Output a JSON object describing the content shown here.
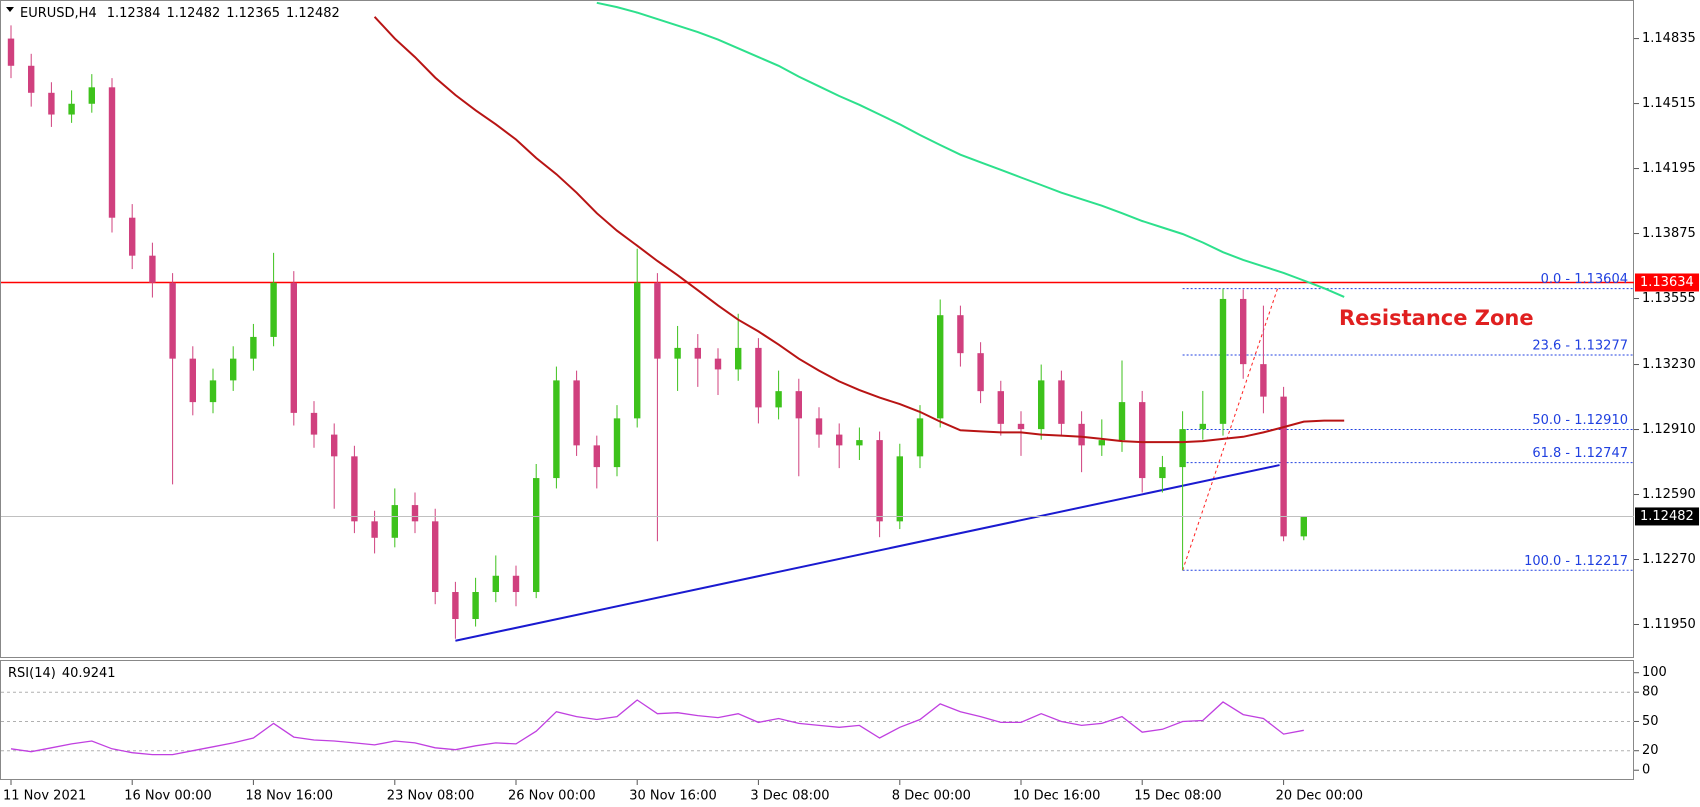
{
  "chart_data": [
    {
      "type": "candlestick",
      "title": "EURUSD,H4",
      "categories": [
        "11 Nov 2021",
        null,
        null,
        null,
        null,
        null,
        "16 Nov 00:00",
        null,
        null,
        null,
        null,
        null,
        "18 Nov 16:00",
        null,
        null,
        null,
        null,
        null,
        null,
        "23 Nov 08:00",
        null,
        null,
        null,
        null,
        null,
        "26 Nov 00:00",
        null,
        null,
        null,
        null,
        null,
        "30 Nov 16:00",
        null,
        null,
        null,
        null,
        null,
        "3 Dec 08:00",
        null,
        null,
        null,
        null,
        null,
        null,
        "8 Dec 00:00",
        null,
        null,
        null,
        null,
        null,
        "10 Dec 16:00",
        null,
        null,
        null,
        null,
        null,
        "15 Dec 08:00",
        null,
        null,
        null,
        null,
        null,
        null,
        "20 Dec 00:00",
        null,
        null,
        null
      ],
      "candles": [
        [
          1.14835,
          1.149,
          1.1464,
          1.14701
        ],
        [
          1.14701,
          1.1476,
          1.145,
          1.14568
        ],
        [
          1.14568,
          1.1462,
          1.144,
          1.14461
        ],
        [
          1.14461,
          1.1458,
          1.1442,
          1.14514
        ],
        [
          1.14514,
          1.1466,
          1.1447,
          1.14595
        ],
        [
          1.14595,
          1.1464,
          1.1388,
          1.13953
        ],
        [
          1.13953,
          1.1402,
          1.137,
          1.13766
        ],
        [
          1.13766,
          1.1383,
          1.1356,
          1.13633
        ],
        [
          1.13633,
          1.1368,
          1.1264,
          1.13259
        ],
        [
          1.13259,
          1.1332,
          1.1298,
          1.13045
        ],
        [
          1.13045,
          1.1321,
          1.1299,
          1.13152
        ],
        [
          1.13152,
          1.1332,
          1.131,
          1.13259
        ],
        [
          1.13259,
          1.1343,
          1.132,
          1.13366
        ],
        [
          1.13366,
          1.1378,
          1.1332,
          1.13633
        ],
        [
          1.13633,
          1.1369,
          1.1293,
          1.12992
        ],
        [
          1.12992,
          1.1305,
          1.1282,
          1.12885
        ],
        [
          1.12885,
          1.1294,
          1.1252,
          1.12778
        ],
        [
          1.12778,
          1.1283,
          1.124,
          1.12458
        ],
        [
          1.12458,
          1.1251,
          1.123,
          1.12377
        ],
        [
          1.12377,
          1.1262,
          1.1233,
          1.12538
        ],
        [
          1.12538,
          1.126,
          1.124,
          1.12458
        ],
        [
          1.12458,
          1.1252,
          1.1205,
          1.1211
        ],
        [
          1.1211,
          1.1216,
          1.1188,
          1.11977
        ],
        [
          1.11977,
          1.1218,
          1.1194,
          1.1211
        ],
        [
          1.1211,
          1.1229,
          1.1206,
          1.1219
        ],
        [
          1.1219,
          1.1224,
          1.1204,
          1.1211
        ],
        [
          1.1211,
          1.1274,
          1.1208,
          1.12671
        ],
        [
          1.12671,
          1.1322,
          1.1262,
          1.13152
        ],
        [
          1.13152,
          1.132,
          1.1278,
          1.12832
        ],
        [
          1.12832,
          1.1288,
          1.1262,
          1.12725
        ],
        [
          1.12725,
          1.1303,
          1.1268,
          1.12965
        ],
        [
          1.12965,
          1.138,
          1.1292,
          1.13633
        ],
        [
          1.13633,
          1.1368,
          1.1236,
          1.13259
        ],
        [
          1.13259,
          1.1342,
          1.131,
          1.13312
        ],
        [
          1.13312,
          1.1338,
          1.1312,
          1.13259
        ],
        [
          1.13259,
          1.1331,
          1.1308,
          1.13206
        ],
        [
          1.13206,
          1.1348,
          1.1315,
          1.13312
        ],
        [
          1.13312,
          1.1336,
          1.1294,
          1.13019
        ],
        [
          1.13019,
          1.132,
          1.1296,
          1.13099
        ],
        [
          1.13099,
          1.1316,
          1.1268,
          1.12965
        ],
        [
          1.12965,
          1.1302,
          1.1282,
          1.12885
        ],
        [
          1.12885,
          1.1294,
          1.1272,
          1.12832
        ],
        [
          1.12832,
          1.1292,
          1.1276,
          1.12858
        ],
        [
          1.12858,
          1.129,
          1.1238,
          1.12458
        ],
        [
          1.12458,
          1.1284,
          1.1242,
          1.12778
        ],
        [
          1.12778,
          1.1303,
          1.1272,
          1.12965
        ],
        [
          1.12965,
          1.1355,
          1.1292,
          1.13473
        ],
        [
          1.13473,
          1.1352,
          1.1322,
          1.13286
        ],
        [
          1.13286,
          1.1334,
          1.1304,
          1.13099
        ],
        [
          1.13099,
          1.1315,
          1.1288,
          1.12938
        ],
        [
          1.12938,
          1.13,
          1.1278,
          1.12912
        ],
        [
          1.12912,
          1.1323,
          1.1286,
          1.13152
        ],
        [
          1.13152,
          1.132,
          1.1288,
          1.12938
        ],
        [
          1.12938,
          1.13,
          1.127,
          1.12832
        ],
        [
          1.12832,
          1.1296,
          1.1278,
          1.12858
        ],
        [
          1.12858,
          1.1325,
          1.128,
          1.13045
        ],
        [
          1.13045,
          1.131,
          1.126,
          1.12671
        ],
        [
          1.12671,
          1.1278,
          1.126,
          1.12725
        ],
        [
          1.12725,
          1.13,
          1.12217,
          1.12912
        ],
        [
          1.12912,
          1.131,
          1.1286,
          1.12938
        ],
        [
          1.12938,
          1.13604,
          1.1288,
          1.13553
        ],
        [
          1.13553,
          1.136,
          1.1316,
          1.13232
        ],
        [
          1.13232,
          1.1352,
          1.1299,
          1.13072
        ],
        [
          1.13072,
          1.1312,
          1.1236,
          1.12384
        ],
        [
          1.12384,
          1.12482,
          1.12365,
          1.12482
        ]
      ],
      "up_color": "#3dc21b",
      "down_color": "#d0407e",
      "lines": [
        {
          "color": "#b81414",
          "values": [
            null,
            null,
            null,
            null,
            null,
            null,
            null,
            null,
            null,
            null,
            null,
            null,
            null,
            null,
            null,
            null,
            null,
            null,
            1.14942,
            1.14835,
            1.14744,
            1.14643,
            1.14557,
            1.14482,
            1.14413,
            1.14338,
            1.14247,
            1.14167,
            1.14076,
            1.13975,
            1.13889,
            1.13815,
            1.1374,
            1.1367,
            1.13596,
            1.13521,
            1.13451,
            1.13393,
            1.13328,
            1.13259,
            1.132,
            1.13147,
            1.13104,
            1.13067,
            1.13035,
            1.12997,
            1.12949,
            1.12906,
            1.12901,
            1.12896,
            1.12896,
            1.12885,
            1.1288,
            1.12874,
            1.12864,
            1.12853,
            1.12848,
            1.12848,
            1.12848,
            1.12853,
            1.12864,
            1.12874,
            1.12896,
            1.12922,
            1.12949,
            1.12954,
            1.12954
          ]
        },
        {
          "color": "#2de08c",
          "values": [
            null,
            null,
            null,
            null,
            null,
            null,
            null,
            null,
            null,
            null,
            null,
            null,
            null,
            null,
            null,
            null,
            null,
            null,
            null,
            null,
            null,
            null,
            null,
            null,
            null,
            null,
            null,
            null,
            null,
            1.15011,
            1.1499,
            1.14963,
            1.14931,
            1.14899,
            1.14867,
            1.1483,
            1.14787,
            1.14744,
            1.14701,
            1.14648,
            1.146,
            1.14552,
            1.14509,
            1.14461,
            1.14413,
            1.1436,
            1.14311,
            1.14263,
            1.14226,
            1.14189,
            1.14151,
            1.14114,
            1.14076,
            1.14044,
            1.14012,
            1.13975,
            1.13937,
            1.13905,
            1.13873,
            1.13831,
            1.13783,
            1.13745,
            1.13713,
            1.13681,
            1.13644,
            1.13606,
            1.13563
          ]
        }
      ],
      "hline": {
        "value": 1.13634,
        "color": "#ff0000"
      },
      "trendline": {
        "values": [
          1.1187,
          1.12735
        ],
        "color": "#1a1ad0"
      },
      "fibonacci": {
        "color": "#2040e0",
        "levels": [
          {
            "value": 1.13604,
            "label": "0.0 - 1.13604"
          },
          {
            "value": 1.13277,
            "label": "23.6 - 1.13277"
          },
          {
            "value": 1.1291,
            "label": "50.0 - 1.12910"
          },
          {
            "value": 1.12747,
            "label": "61.8 - 1.12747"
          },
          {
            "value": 1.12217,
            "label": "100.0 - 1.12217"
          }
        ]
      },
      "annotation": "Resistance Zone",
      "ylim": [
        1.1179,
        1.1502
      ],
      "yticks": [
        1.14835,
        1.14515,
        1.14195,
        1.13875,
        1.13555,
        {
          "value": 1.1323,
          "label": "1.13230"
        },
        {
          "value": 1.1291,
          "label": "1.12910"
        },
        {
          "value": 1.1259,
          "label": "1.12590"
        },
        {
          "value": 1.1227,
          "label": "1.12270"
        },
        {
          "value": 1.1195,
          "label": "1.11950"
        }
      ]
    },
    {
      "type": "line",
      "title": "RSI(14)",
      "color": "#c040e0",
      "values": [
        22,
        19,
        23,
        27,
        30,
        22,
        18,
        16,
        16,
        20,
        24,
        28,
        33,
        48,
        34,
        31,
        30,
        28,
        26,
        30,
        28,
        23,
        21,
        25,
        28,
        27,
        40,
        60,
        55,
        52,
        55,
        72,
        58,
        59,
        56,
        54,
        58,
        49,
        53,
        48,
        46,
        44,
        46,
        33,
        44,
        52,
        68,
        60,
        55,
        49,
        49,
        58,
        50,
        46,
        48,
        55,
        39,
        42,
        50,
        51,
        70,
        57,
        53,
        37,
        40.9241
      ],
      "ylim": [
        -9,
        112
      ],
      "yticks": [
        100,
        80,
        50,
        20,
        0
      ],
      "levels": [
        20,
        50,
        80
      ]
    }
  ]
}
